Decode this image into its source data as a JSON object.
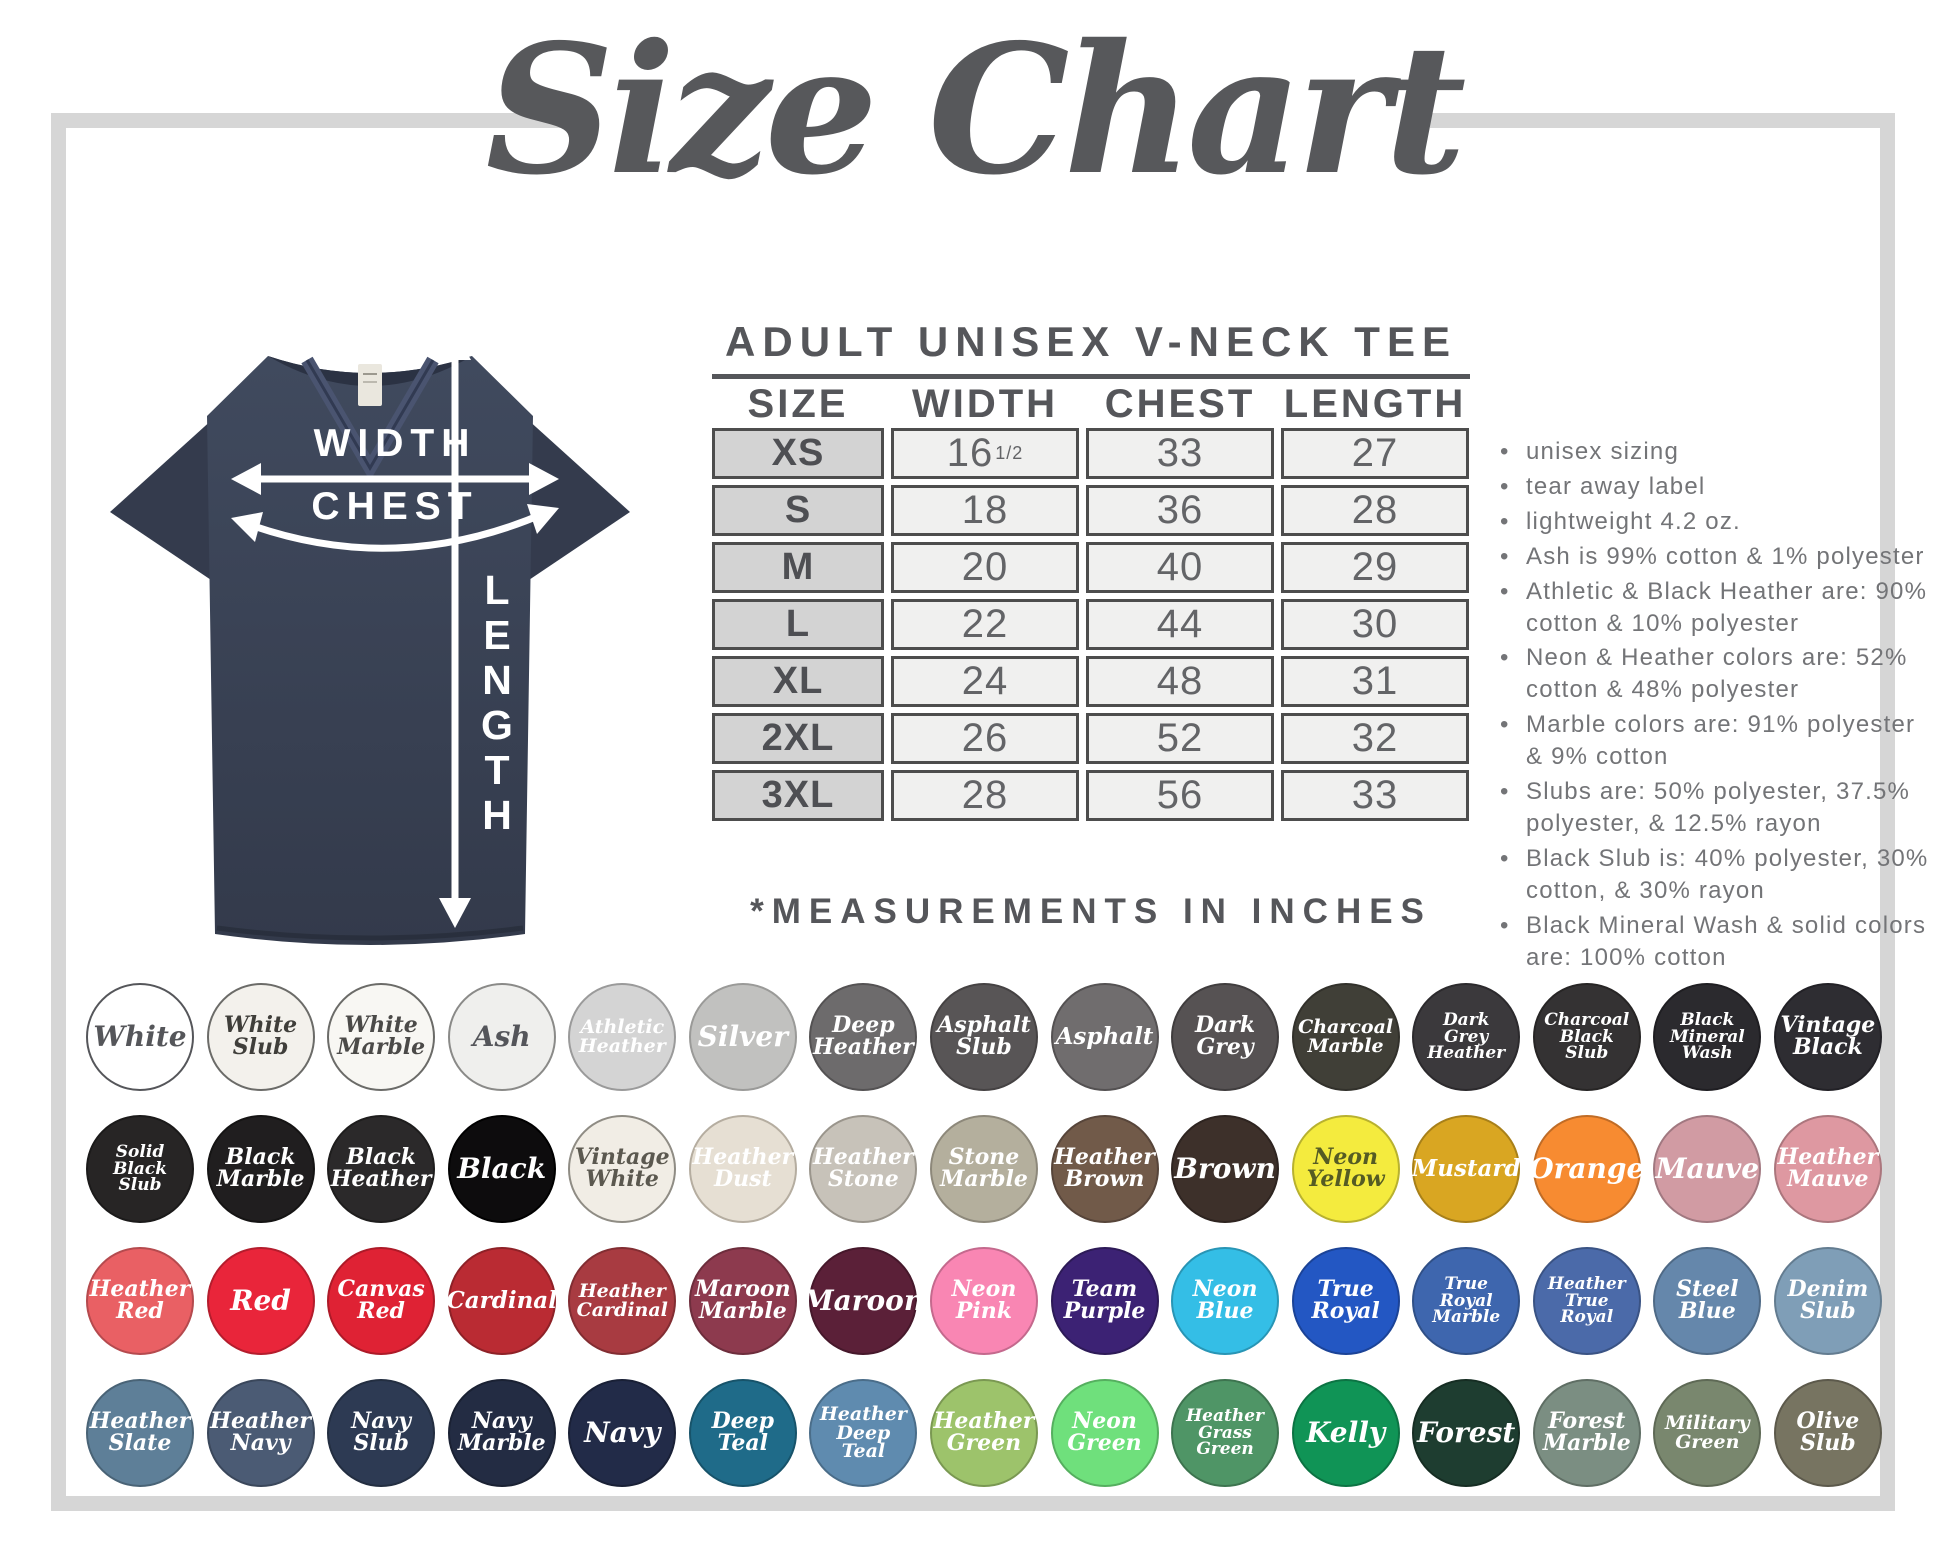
{
  "title": "Size Chart",
  "frame_color": "#d6d6d6",
  "diagram": {
    "labels": {
      "width": "WIDTH",
      "chest": "CHEST",
      "length": "LENGTH"
    },
    "shirt_color": "#3a4154"
  },
  "size_table": {
    "heading": "ADULT UNISEX V-NECK TEE",
    "columns": [
      "SIZE",
      "WIDTH",
      "CHEST",
      "LENGTH"
    ],
    "rows": [
      {
        "size": "XS",
        "width": "16",
        "width_frac": "1/2",
        "chest": "33",
        "length": "27"
      },
      {
        "size": "S",
        "width": "18",
        "chest": "36",
        "length": "28"
      },
      {
        "size": "M",
        "width": "20",
        "chest": "40",
        "length": "29"
      },
      {
        "size": "L",
        "width": "22",
        "chest": "44",
        "length": "30"
      },
      {
        "size": "XL",
        "width": "24",
        "chest": "48",
        "length": "31"
      },
      {
        "size": "2XL",
        "width": "26",
        "chest": "52",
        "length": "32"
      },
      {
        "size": "3XL",
        "width": "28",
        "chest": "56",
        "length": "33"
      }
    ],
    "footnote": "*MEASUREMENTS IN INCHES"
  },
  "notes": {
    "items": [
      "unisex sizing",
      "tear away label",
      "lightweight 4.2 oz.",
      "Ash is 99% cotton & 1% polyester",
      "Athletic & Black Heather are: 90% cotton & 10% polyester",
      "Neon & Heather colors are: 52% cotton & 48% polyester",
      "Marble colors are: 91% polyester & 9% cotton",
      "Slubs are: 50% polyester, 37.5% polyester, & 12.5% rayon",
      "Black Slub is: 40% polyester, 30% cotton, & 30% rayon",
      "Black Mineral Wash & solid colors are: 100% cotton"
    ]
  },
  "swatches": {
    "rows": [
      [
        {
          "n": [
            "White"
          ],
          "bg": "#ffffff",
          "fg": "#55565a",
          "bd": "#55565a"
        },
        {
          "n": [
            "White",
            "Slub"
          ],
          "bg": "#f3f1ec",
          "fg": "#3f3e3a",
          "bd": "#6b6b68",
          "tx": "slub"
        },
        {
          "n": [
            "White",
            "Marble"
          ],
          "bg": "#f8f7f3",
          "fg": "#4b4a48",
          "bd": "#6b6b68",
          "tx": "marble"
        },
        {
          "n": [
            "Ash"
          ],
          "bg": "#efefed",
          "fg": "#54555a",
          "bd": "#8a8a88"
        },
        {
          "n": [
            "Athletic",
            "Heather"
          ],
          "bg": "#d4d4d4",
          "fg": "#ffffff",
          "bd": "#9a9a9a"
        },
        {
          "n": [
            "Silver"
          ],
          "bg": "#c1c1bf",
          "fg": "#ffffff",
          "bd": "#9a9a98"
        },
        {
          "n": [
            "Deep",
            "Heather"
          ],
          "bg": "#6d6b6c",
          "fg": "#ffffff",
          "bd": "#545253"
        },
        {
          "n": [
            "Asphalt",
            "Slub"
          ],
          "bg": "#585556",
          "fg": "#ffffff",
          "bd": "#454243",
          "tx": "slub"
        },
        {
          "n": [
            "Asphalt"
          ],
          "bg": "#706d6e",
          "fg": "#ffffff",
          "bd": "#545152"
        },
        {
          "n": [
            "Dark",
            "Grey"
          ],
          "bg": "#565253",
          "fg": "#ffffff",
          "bd": "#403d3e"
        },
        {
          "n": [
            "Charcoal",
            "Marble"
          ],
          "bg": "#403f37",
          "fg": "#ffffff",
          "bd": "#32312b",
          "tx": "marble"
        },
        {
          "n": [
            "Dark",
            "Grey",
            "Heather"
          ],
          "bg": "#3b393c",
          "fg": "#ffffff",
          "bd": "#2c2a2d"
        },
        {
          "n": [
            "Charcoal",
            "Black",
            "Slub"
          ],
          "bg": "#343233",
          "fg": "#ffffff",
          "bd": "#272525",
          "tx": "slub"
        },
        {
          "n": [
            "Black",
            "Mineral",
            "Wash"
          ],
          "bg": "#2b2a2e",
          "fg": "#ffffff",
          "bd": "#1f1e22",
          "tx": "marble"
        },
        {
          "n": [
            "Vintage",
            "Black"
          ],
          "bg": "#2e2d32",
          "fg": "#ffffff",
          "bd": "#222126"
        }
      ],
      [
        {
          "n": [
            "Solid",
            "Black",
            "Slub"
          ],
          "bg": "#272525",
          "fg": "#ffffff",
          "bd": "#1b1a1a",
          "tx": "slub"
        },
        {
          "n": [
            "Black",
            "Marble"
          ],
          "bg": "#201e1f",
          "fg": "#ffffff",
          "bd": "#151414",
          "tx": "marble"
        },
        {
          "n": [
            "Black",
            "Heather"
          ],
          "bg": "#2b292a",
          "fg": "#ffffff",
          "bd": "#1e1d1d"
        },
        {
          "n": [
            "Black"
          ],
          "bg": "#0d0c0d",
          "fg": "#ffffff",
          "bd": "#000000"
        },
        {
          "n": [
            "Vintage",
            "White"
          ],
          "bg": "#f1ede5",
          "fg": "#5b584f",
          "bd": "#8f8c84"
        },
        {
          "n": [
            "Heather",
            "Dust"
          ],
          "bg": "#e6dfd3",
          "fg": "#ffffff",
          "bd": "#b5ada0"
        },
        {
          "n": [
            "Heather",
            "Stone"
          ],
          "bg": "#c7c2b9",
          "fg": "#ffffff",
          "bd": "#9a958c"
        },
        {
          "n": [
            "Stone",
            "Marble"
          ],
          "bg": "#b4af9d",
          "fg": "#ffffff",
          "bd": "#8d887a",
          "tx": "marble"
        },
        {
          "n": [
            "Heather",
            "Brown"
          ],
          "bg": "#715a49",
          "fg": "#ffffff",
          "bd": "#57453a"
        },
        {
          "n": [
            "Brown"
          ],
          "bg": "#3d302a",
          "fg": "#ffffff",
          "bd": "#2e2420"
        },
        {
          "n": [
            "Neon",
            "Yellow"
          ],
          "bg": "#f4eb3e",
          "fg": "#555b24",
          "bd": "#b8b12f"
        },
        {
          "n": [
            "Mustard"
          ],
          "bg": "#d9a622",
          "fg": "#ffffff",
          "bd": "#a88019"
        },
        {
          "n": [
            "Orange"
          ],
          "bg": "#f78b31",
          "fg": "#ffffff",
          "bd": "#c06c26"
        },
        {
          "n": [
            "Mauve"
          ],
          "bg": "#d19ba3",
          "fg": "#ffffff",
          "bd": "#a17880"
        },
        {
          "n": [
            "Heather",
            "Mauve"
          ],
          "bg": "#de98a1",
          "fg": "#ffffff",
          "bd": "#ab767d"
        }
      ],
      [
        {
          "n": [
            "Heather",
            "Red"
          ],
          "bg": "#e96064",
          "fg": "#ffffff",
          "bd": "#b54a4e"
        },
        {
          "n": [
            "Red"
          ],
          "bg": "#e9253a",
          "fg": "#ffffff",
          "bd": "#b41d2d"
        },
        {
          "n": [
            "Canvas",
            "Red"
          ],
          "bg": "#df2234",
          "fg": "#ffffff",
          "bd": "#ad1a28"
        },
        {
          "n": [
            "Cardinal"
          ],
          "bg": "#ba2b33",
          "fg": "#ffffff",
          "bd": "#8e2127"
        },
        {
          "n": [
            "Heather",
            "Cardinal"
          ],
          "bg": "#a83b41",
          "fg": "#ffffff",
          "bd": "#822d32"
        },
        {
          "n": [
            "Maroon",
            "Marble"
          ],
          "bg": "#8d3a4e",
          "fg": "#ffffff",
          "bd": "#6d2d3c",
          "tx": "marble"
        },
        {
          "n": [
            "Maroon"
          ],
          "bg": "#5b2038",
          "fg": "#ffffff",
          "bd": "#46182b"
        },
        {
          "n": [
            "Neon",
            "Pink"
          ],
          "bg": "#f986b3",
          "fg": "#ffffff",
          "bd": "#c4698d"
        },
        {
          "n": [
            "Team",
            "Purple"
          ],
          "bg": "#3c2274",
          "fg": "#ffffff",
          "bd": "#2d1a57"
        },
        {
          "n": [
            "Neon",
            "Blue"
          ],
          "bg": "#34bee6",
          "fg": "#ffffff",
          "bd": "#2895b5"
        },
        {
          "n": [
            "True",
            "Royal"
          ],
          "bg": "#2357c3",
          "fg": "#ffffff",
          "bd": "#1b4397"
        },
        {
          "n": [
            "True",
            "Royal",
            "Marble"
          ],
          "bg": "#3e66ae",
          "fg": "#ffffff",
          "bd": "#305087",
          "tx": "marble"
        },
        {
          "n": [
            "Heather",
            "True",
            "Royal"
          ],
          "bg": "#4b6aa9",
          "fg": "#ffffff",
          "bd": "#3a5384"
        },
        {
          "n": [
            "Steel",
            "Blue"
          ],
          "bg": "#6587ab",
          "fg": "#ffffff",
          "bd": "#4f6a86"
        },
        {
          "n": [
            "Denim",
            "Slub"
          ],
          "bg": "#7f9eb7",
          "fg": "#ffffff",
          "bd": "#637c90",
          "tx": "slub"
        }
      ],
      [
        {
          "n": [
            "Heather",
            "Slate"
          ],
          "bg": "#5e7f98",
          "fg": "#ffffff",
          "bd": "#496376"
        },
        {
          "n": [
            "Heather",
            "Navy"
          ],
          "bg": "#4b5b74",
          "fg": "#ffffff",
          "bd": "#3a475b"
        },
        {
          "n": [
            "Navy",
            "Slub"
          ],
          "bg": "#2d3a53",
          "fg": "#ffffff",
          "bd": "#232e41",
          "tx": "slub"
        },
        {
          "n": [
            "Navy",
            "Marble"
          ],
          "bg": "#232c43",
          "fg": "#ffffff",
          "bd": "#1a2133",
          "tx": "marble"
        },
        {
          "n": [
            "Navy"
          ],
          "bg": "#222b48",
          "fg": "#ffffff",
          "bd": "#192036"
        },
        {
          "n": [
            "Deep",
            "Teal"
          ],
          "bg": "#1f6b89",
          "fg": "#ffffff",
          "bd": "#17536a"
        },
        {
          "n": [
            "Heather",
            "Deep Teal"
          ],
          "bg": "#5f8baf",
          "fg": "#ffffff",
          "bd": "#4a6d89"
        },
        {
          "n": [
            "Heather",
            "Green"
          ],
          "bg": "#9dc36b",
          "fg": "#ffffff",
          "bd": "#7a9852"
        },
        {
          "n": [
            "Neon",
            "Green"
          ],
          "bg": "#6fe07c",
          "fg": "#ffffff",
          "bd": "#55af5f"
        },
        {
          "n": [
            "Heather",
            "Grass",
            "Green"
          ],
          "bg": "#4f9566",
          "fg": "#ffffff",
          "bd": "#3d744f"
        },
        {
          "n": [
            "Kelly"
          ],
          "bg": "#109456",
          "fg": "#ffffff",
          "bd": "#0c7343"
        },
        {
          "n": [
            "Forest"
          ],
          "bg": "#1e3d30",
          "fg": "#ffffff",
          "bd": "#162d23"
        },
        {
          "n": [
            "Forest",
            "Marble"
          ],
          "bg": "#7b8e82",
          "fg": "#ffffff",
          "bd": "#5f6e64",
          "tx": "marble"
        },
        {
          "n": [
            "Military",
            "Green"
          ],
          "bg": "#79876e",
          "fg": "#ffffff",
          "bd": "#5e6955"
        },
        {
          "n": [
            "Olive",
            "Slub"
          ],
          "bg": "#777461",
          "fg": "#ffffff",
          "bd": "#5c594b",
          "tx": "slub"
        }
      ]
    ]
  }
}
